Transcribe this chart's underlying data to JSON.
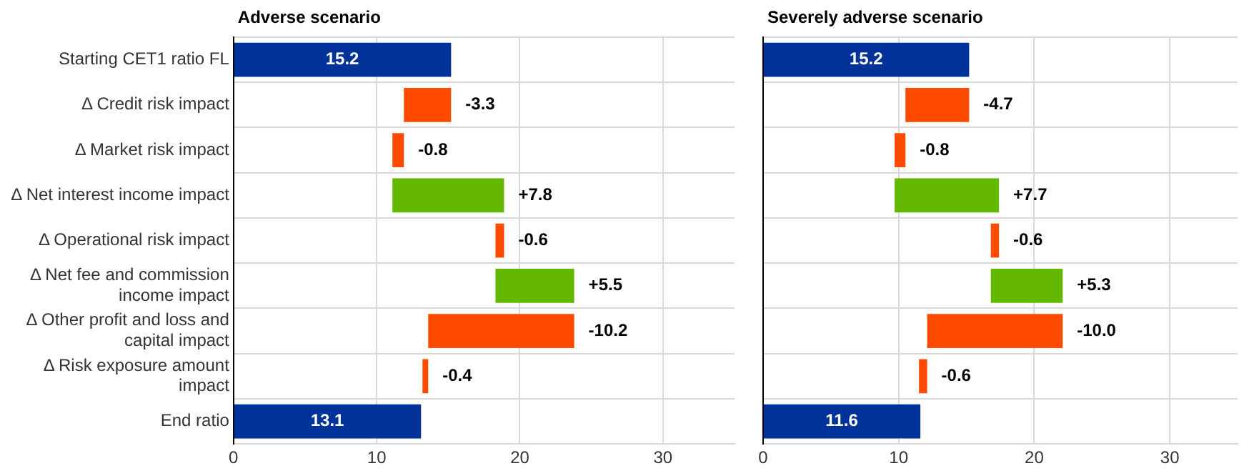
{
  "chart_data": [
    {
      "type": "bar",
      "orientation": "horizontal",
      "title": "Adverse scenario",
      "categories": [
        "Starting CET1 ratio FL",
        "Δ Credit risk impact",
        "Δ Market risk impact",
        "Δ Net interest income impact",
        "Δ Operational risk impact",
        "Δ Net fee and commission income impact",
        "Δ Other profit and loss and capital impact",
        "Δ Risk exposure amount impact",
        "End ratio"
      ],
      "values": [
        15.2,
        -3.3,
        -0.8,
        7.8,
        -0.6,
        5.5,
        -10.2,
        -0.4,
        13.1
      ],
      "base": [
        0,
        15.2,
        11.9,
        11.1,
        18.9,
        18.3,
        23.8,
        13.6,
        0
      ],
      "colors": [
        "#003299",
        "#ff4b00",
        "#ff4b00",
        "#65b800",
        "#ff4b00",
        "#65b800",
        "#ff4b00",
        "#ff4b00",
        "#003299"
      ],
      "value_labels": [
        "15.2",
        "-3.3",
        "-0.8",
        "+7.8",
        "-0.6",
        "+5.5",
        "-10.2",
        "-0.4",
        "13.1"
      ],
      "xlim": [
        0,
        35
      ],
      "xticks": [
        0,
        10,
        20,
        30
      ],
      "grid": true
    },
    {
      "type": "bar",
      "orientation": "horizontal",
      "title": "Severely adverse scenario",
      "categories": [
        null,
        null,
        null,
        null,
        null,
        null,
        null,
        null,
        null
      ],
      "values": [
        15.2,
        -4.7,
        -0.8,
        7.7,
        -0.6,
        5.3,
        -10.0,
        -0.6,
        11.6
      ],
      "base": [
        0,
        15.2,
        10.5,
        9.7,
        17.4,
        16.8,
        22.1,
        12.1,
        0
      ],
      "colors": [
        "#003299",
        "#ff4b00",
        "#ff4b00",
        "#65b800",
        "#ff4b00",
        "#65b800",
        "#ff4b00",
        "#ff4b00",
        "#003299"
      ],
      "value_labels": [
        "15.2",
        "-4.7",
        "-0.8",
        "+7.7",
        "-0.6",
        "+5.3",
        "-10.0",
        "-0.6",
        "11.6"
      ],
      "xlim": [
        0,
        35
      ],
      "xticks": [
        0,
        10,
        20,
        30
      ],
      "grid": true,
      "tick_labels": "x"
    }
  ]
}
